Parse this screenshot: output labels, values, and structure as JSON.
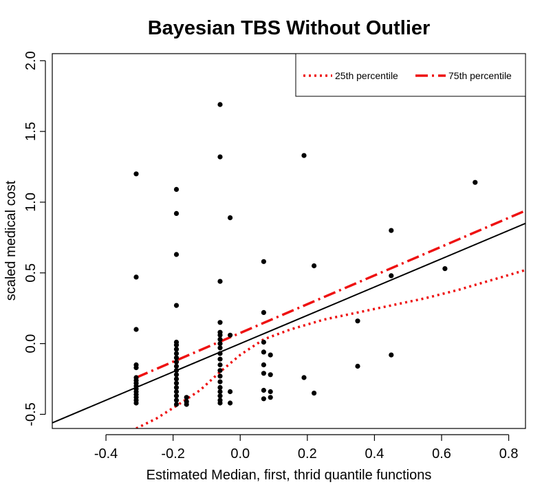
{
  "chart_data": {
    "type": "scatter",
    "title": "Bayesian TBS Without Outlier",
    "xlabel": "Estimated Median, first, thrid quantile functions",
    "ylabel": "scaled medical cost",
    "xlim": [
      -0.56,
      0.85
    ],
    "ylim": [
      -0.6,
      2.05
    ],
    "xticks": [
      -0.4,
      -0.2,
      0.0,
      0.2,
      0.4,
      0.6,
      0.8
    ],
    "xtick_labels": [
      "-0.4",
      "-0.2",
      "0.0",
      "0.2",
      "0.4",
      "0.6",
      "0.8"
    ],
    "yticks": [
      -0.5,
      0.0,
      0.5,
      1.0,
      1.5,
      2.0
    ],
    "ytick_labels": [
      "-0.5",
      "0.0",
      "0.5",
      "1.0",
      "1.5",
      "2.0"
    ],
    "legend": {
      "position": "top-right",
      "entries": [
        {
          "label": "25th percentile",
          "color": "#ee1111",
          "style": "dotted"
        },
        {
          "label": "75th percentile",
          "color": "#ee1111",
          "style": "dashdot"
        }
      ]
    },
    "points": [
      [
        -0.31,
        1.2
      ],
      [
        -0.31,
        0.47
      ],
      [
        -0.31,
        0.1
      ],
      [
        -0.31,
        -0.15
      ],
      [
        -0.31,
        -0.17
      ],
      [
        -0.31,
        -0.24
      ],
      [
        -0.31,
        -0.26
      ],
      [
        -0.31,
        -0.28
      ],
      [
        -0.31,
        -0.3
      ],
      [
        -0.31,
        -0.32
      ],
      [
        -0.31,
        -0.34
      ],
      [
        -0.31,
        -0.36
      ],
      [
        -0.31,
        -0.38
      ],
      [
        -0.31,
        -0.4
      ],
      [
        -0.31,
        -0.42
      ],
      [
        -0.19,
        1.09
      ],
      [
        -0.19,
        0.92
      ],
      [
        -0.19,
        0.63
      ],
      [
        -0.19,
        0.27
      ],
      [
        -0.19,
        0.01
      ],
      [
        -0.19,
        -0.01
      ],
      [
        -0.19,
        -0.04
      ],
      [
        -0.19,
        -0.07
      ],
      [
        -0.19,
        -0.1
      ],
      [
        -0.19,
        -0.13
      ],
      [
        -0.19,
        -0.16
      ],
      [
        -0.19,
        -0.19
      ],
      [
        -0.19,
        -0.22
      ],
      [
        -0.19,
        -0.25
      ],
      [
        -0.19,
        -0.28
      ],
      [
        -0.19,
        -0.31
      ],
      [
        -0.19,
        -0.34
      ],
      [
        -0.19,
        -0.37
      ],
      [
        -0.19,
        -0.4
      ],
      [
        -0.19,
        -0.43
      ],
      [
        -0.16,
        -0.38
      ],
      [
        -0.16,
        -0.41
      ],
      [
        -0.16,
        -0.43
      ],
      [
        -0.06,
        1.69
      ],
      [
        -0.06,
        1.32
      ],
      [
        -0.06,
        0.44
      ],
      [
        -0.06,
        0.15
      ],
      [
        -0.06,
        0.08
      ],
      [
        -0.06,
        0.06
      ],
      [
        -0.06,
        0.03
      ],
      [
        -0.06,
        0.0
      ],
      [
        -0.06,
        -0.03
      ],
      [
        -0.06,
        -0.07
      ],
      [
        -0.06,
        -0.11
      ],
      [
        -0.06,
        -0.15
      ],
      [
        -0.06,
        -0.19
      ],
      [
        -0.06,
        -0.23
      ],
      [
        -0.06,
        -0.27
      ],
      [
        -0.06,
        -0.31
      ],
      [
        -0.06,
        -0.34
      ],
      [
        -0.06,
        -0.37
      ],
      [
        -0.06,
        -0.4
      ],
      [
        -0.06,
        -0.42
      ],
      [
        -0.03,
        0.89
      ],
      [
        -0.03,
        0.06
      ],
      [
        -0.03,
        -0.34
      ],
      [
        -0.03,
        -0.42
      ],
      [
        0.07,
        0.58
      ],
      [
        0.07,
        0.22
      ],
      [
        0.07,
        0.01
      ],
      [
        0.07,
        -0.06
      ],
      [
        0.07,
        -0.15
      ],
      [
        0.07,
        -0.21
      ],
      [
        0.07,
        -0.33
      ],
      [
        0.07,
        -0.39
      ],
      [
        0.09,
        -0.08
      ],
      [
        0.09,
        -0.22
      ],
      [
        0.09,
        -0.34
      ],
      [
        0.09,
        -0.38
      ],
      [
        0.19,
        1.33
      ],
      [
        0.19,
        -0.24
      ],
      [
        0.22,
        0.55
      ],
      [
        0.22,
        -0.35
      ],
      [
        0.35,
        0.16
      ],
      [
        0.35,
        -0.16
      ],
      [
        0.45,
        0.8
      ],
      [
        0.45,
        0.48
      ],
      [
        0.45,
        -0.08
      ],
      [
        0.61,
        0.53
      ],
      [
        0.7,
        1.14
      ]
    ],
    "series": [
      {
        "name": "Median fit",
        "color": "#000000",
        "style": "solid",
        "x": [
          -0.56,
          0.85
        ],
        "y": [
          -0.56,
          0.85
        ]
      },
      {
        "name": "25th percentile",
        "color": "#ee1111",
        "style": "dotted",
        "x": [
          -0.31,
          -0.25,
          -0.19,
          -0.12,
          -0.06,
          0.0,
          0.07,
          0.15,
          0.25,
          0.35,
          0.45,
          0.55,
          0.65,
          0.75,
          0.85
        ],
        "y": [
          -0.6,
          -0.53,
          -0.44,
          -0.33,
          -0.2,
          -0.08,
          0.03,
          0.1,
          0.17,
          0.22,
          0.27,
          0.32,
          0.38,
          0.45,
          0.52
        ]
      },
      {
        "name": "75th percentile",
        "color": "#ee1111",
        "style": "dashdot",
        "x": [
          -0.31,
          0.85
        ],
        "y": [
          -0.24,
          0.94
        ]
      }
    ]
  }
}
